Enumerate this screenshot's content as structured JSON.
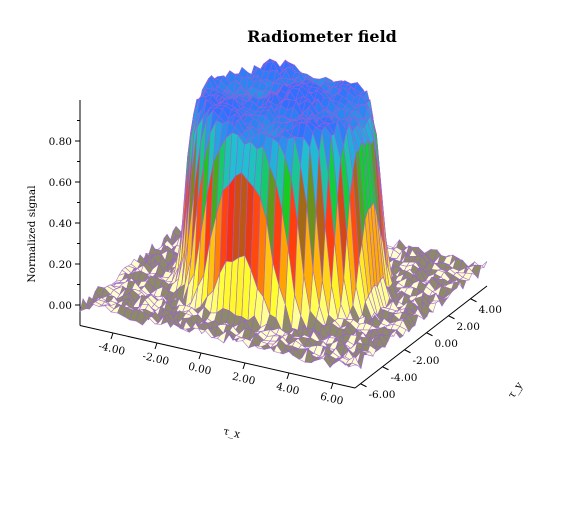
{
  "chart_data": {
    "type": "surface",
    "title": "Radiometer field",
    "xlabel": "τ_x",
    "ylabel": "τ_y",
    "zlabel": "Normalized signal",
    "xlim": [
      -5.5,
      7.0
    ],
    "ylim": [
      -6.5,
      5.5
    ],
    "zlim": [
      -0.1,
      1.0
    ],
    "x_ticks": [
      "-4.00",
      "-2.00",
      "0.00",
      "2.00",
      "4.00",
      "6.00"
    ],
    "y_ticks": [
      "-6.00",
      "-4.00",
      "-2.00",
      "0.00",
      "2.00",
      "4.00"
    ],
    "z_ticks": [
      "0.00",
      "0.20",
      "0.40",
      "0.60",
      "0.80"
    ],
    "x_tick_values": [
      -4,
      -2,
      0,
      2,
      4,
      6
    ],
    "y_tick_values": [
      -6,
      -4,
      -2,
      0,
      2,
      4
    ],
    "z_tick_values": [
      0.0,
      0.2,
      0.4,
      0.6,
      0.8
    ],
    "surface": {
      "shape": "flat-top plateau with noisy floor",
      "center": [
        0.75,
        -0.5
      ],
      "plateau_radius": 4.0,
      "edge_width": 0.55,
      "plateau_height": 0.9,
      "floor_level": 0.0,
      "noise_amplitude": 0.03
    },
    "colormap": [
      "#ffffd0",
      "#ffff30",
      "#ffa500",
      "#ff2a10",
      "#10d020",
      "#20c0d0",
      "#3070ff"
    ],
    "mesh_color": "#9b5fd8",
    "grid": false
  }
}
